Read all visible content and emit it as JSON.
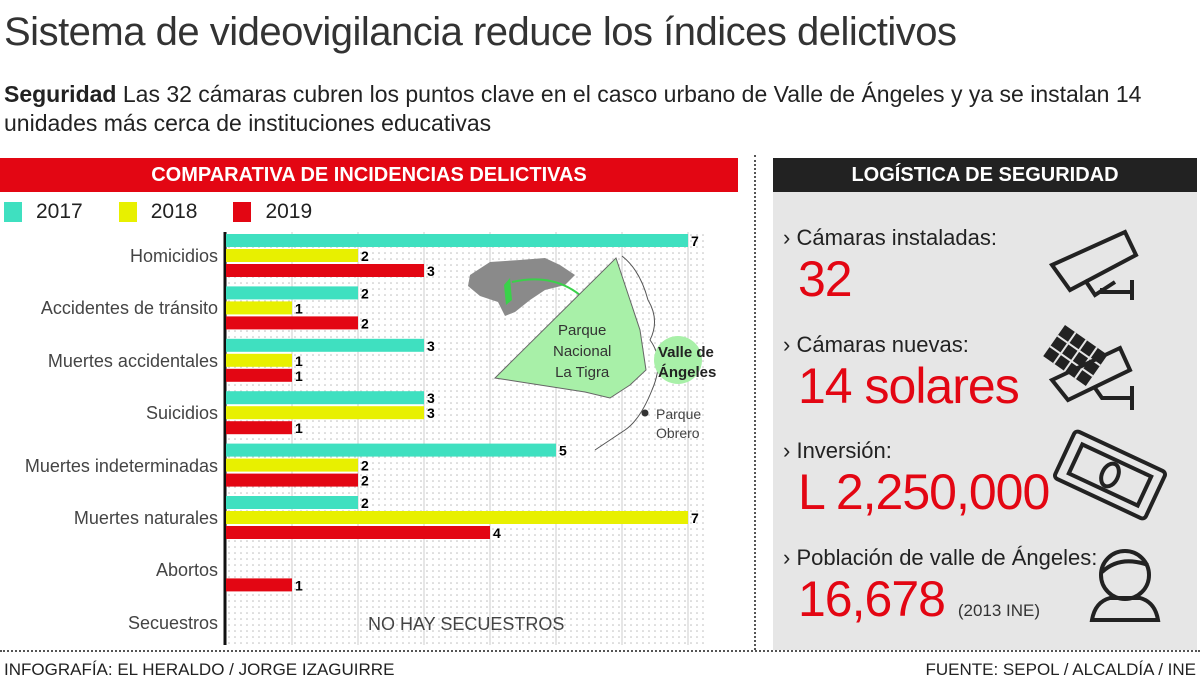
{
  "header": {
    "title": "Sistema de videovigilancia reduce los índices delictivos",
    "subtitle_bold": "Seguridad",
    "subtitle_text": "Las 32 cámaras cubren los puntos clave en el casco urbano de Valle de Ángeles y ya se instalan 14 unidades más cerca de instituciones educativas"
  },
  "chart_data": {
    "type": "bar",
    "orientation": "horizontal",
    "title": "COMPARATIVA DE INCIDENCIAS DELICTIVAS",
    "categories": [
      "Homicidios",
      "Accidentes de tránsito",
      "Muertes accidentales",
      "Suicidios",
      "Muertes indeterminadas",
      "Muertes naturales",
      "Abortos",
      "Secuestros"
    ],
    "series": [
      {
        "name": "2017",
        "color": "#3fe0c0",
        "values": [
          7,
          2,
          3,
          3,
          5,
          2,
          null,
          null
        ]
      },
      {
        "name": "2018",
        "color": "#e8f000",
        "values": [
          2,
          1,
          1,
          3,
          2,
          7,
          null,
          null
        ]
      },
      {
        "name": "2019",
        "color": "#e30613",
        "values": [
          3,
          2,
          1,
          1,
          2,
          4,
          1,
          null
        ]
      }
    ],
    "xlim": [
      0,
      7
    ],
    "grid": true,
    "legend": "top-left",
    "annotation": "NO HAY SECUESTROS"
  },
  "map": {
    "park": "Parque Nacional La Tigra",
    "town": "Valle de Ángeles",
    "point": "Parque Obrero"
  },
  "logistics": {
    "title": "LOGÍSTICA DE SEGURIDAD",
    "items": [
      {
        "label": "Cámaras instaladas:",
        "value": "32",
        "icon": "security-camera-icon"
      },
      {
        "label": "Cámaras nuevas:",
        "value": "14 solares",
        "icon": "solar-camera-icon"
      },
      {
        "label": "Inversión:",
        "value": "L 2,250,000",
        "icon": "banknote-icon"
      },
      {
        "label": "Población de valle de Ángeles:",
        "value": "16,678",
        "note": "(2013 INE)",
        "icon": "person-icon"
      }
    ]
  },
  "footer": {
    "credit": "INFOGRAFÍA: EL HERALDO / JORGE IZAGUIRRE",
    "source": "FUENTE: SEPOL / ALCALDÍA / INE"
  }
}
